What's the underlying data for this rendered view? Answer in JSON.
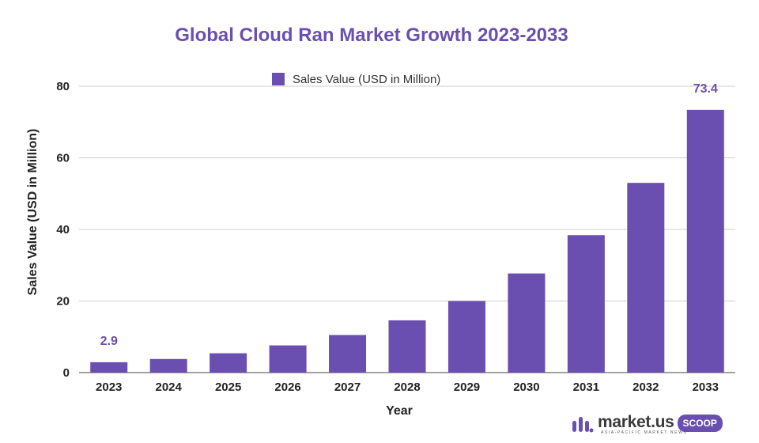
{
  "colors": {
    "bar": "#6a4fb0",
    "title": "#6a4fb0",
    "label": "#6a4fb0",
    "grid": "#cfcfcf"
  },
  "logo": {
    "name": "market.us",
    "tagline": "ASIA-PACIFIC MARKET NEWS",
    "badge": "SCOOP"
  },
  "chart_data": {
    "type": "bar",
    "title": "Global Cloud Ran Market Growth 2023-2033",
    "xlabel": "Year",
    "ylabel": "Sales Value (USD in Million)",
    "categories": [
      "2023",
      "2024",
      "2025",
      "2026",
      "2027",
      "2028",
      "2029",
      "2030",
      "2031",
      "2032",
      "2033"
    ],
    "series": [
      {
        "name": "Sales Value (USD in Million)",
        "values": [
          2.9,
          3.8,
          5.4,
          7.6,
          10.5,
          14.6,
          20.0,
          27.7,
          38.4,
          53.0,
          73.4
        ]
      }
    ],
    "data_labels": [
      {
        "category": "2023",
        "text": "2.9"
      },
      {
        "category": "2033",
        "text": "73.4"
      }
    ],
    "ylim": [
      0,
      80
    ],
    "yticks": [
      0,
      20,
      40,
      60,
      80
    ],
    "legend": "top-center",
    "grid": true
  }
}
